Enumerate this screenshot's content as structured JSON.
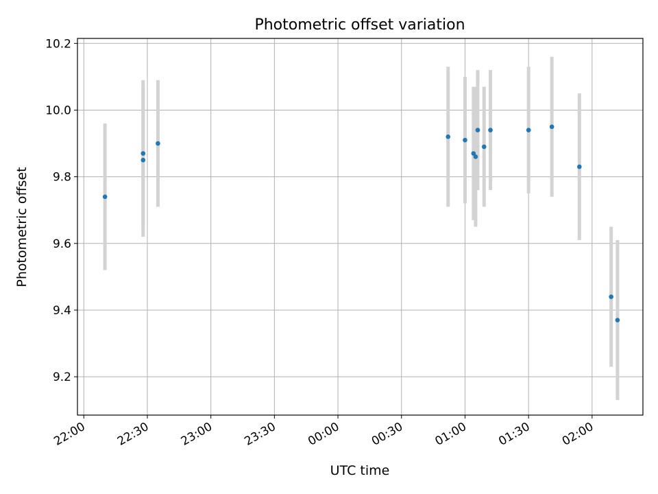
{
  "chart_data": {
    "type": "scatter",
    "title": "Photometric offset variation",
    "xlabel": "UTC time",
    "ylabel": "Photometric offset",
    "x_axis": {
      "kind": "time",
      "start": "22:00",
      "ticks": [
        "22:00",
        "22:30",
        "23:00",
        "23:30",
        "00:00",
        "00:30",
        "01:00",
        "01:30",
        "02:00"
      ],
      "range": [
        "21:57",
        "02:24"
      ]
    },
    "y_axis": {
      "ticks": [
        "9.2",
        "9.4",
        "9.6",
        "9.8",
        "10.0",
        "10.2"
      ],
      "range": [
        9.085,
        10.215
      ]
    },
    "grid": true,
    "colors": {
      "marker": "#1f77b4",
      "errorbar": "#d3d3d3",
      "grid": "#b0b0b0"
    },
    "series": [
      {
        "points": [
          {
            "x": "22:10",
            "y": 9.74,
            "err": 0.22
          },
          {
            "x": "22:28",
            "y": 9.85,
            "err": 0.23
          },
          {
            "x": "22:28",
            "y": 9.87,
            "err": 0.22
          },
          {
            "x": "22:35",
            "y": 9.9,
            "err": 0.19
          },
          {
            "x": "00:52",
            "y": 9.92,
            "err": 0.21
          },
          {
            "x": "01:00",
            "y": 9.91,
            "err": 0.19
          },
          {
            "x": "01:04",
            "y": 9.87,
            "err": 0.2
          },
          {
            "x": "01:05",
            "y": 9.86,
            "err": 0.21
          },
          {
            "x": "01:06",
            "y": 9.94,
            "err": 0.18
          },
          {
            "x": "01:09",
            "y": 9.89,
            "err": 0.18
          },
          {
            "x": "01:12",
            "y": 9.94,
            "err": 0.18
          },
          {
            "x": "01:30",
            "y": 9.94,
            "err": 0.19
          },
          {
            "x": "01:41",
            "y": 9.95,
            "err": 0.21
          },
          {
            "x": "01:54",
            "y": 9.83,
            "err": 0.22
          },
          {
            "x": "02:09",
            "y": 9.44,
            "err": 0.21
          },
          {
            "x": "02:12",
            "y": 9.37,
            "err": 0.24
          }
        ]
      }
    ]
  }
}
